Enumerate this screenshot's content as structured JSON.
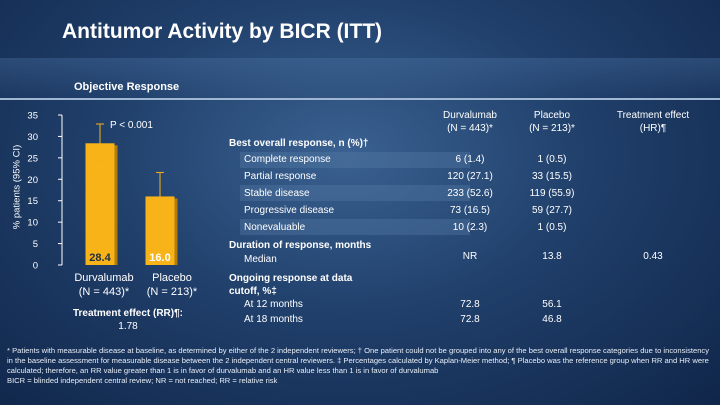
{
  "slide": {
    "title": "Antitumor Activity by BICR (ITT)",
    "section_title": "Objective Response"
  },
  "colors": {
    "bar_fill": "#f7b317",
    "bar_shadow": "#b67c08",
    "errorbar": "#f7b317",
    "background": "#1f3e69"
  },
  "chart_data": {
    "type": "bar",
    "title": "",
    "ylabel": "% patients (95% CI)",
    "ylim": [
      0,
      35
    ],
    "yticks": [
      "0",
      "5",
      "10",
      "15",
      "20",
      "25",
      "30",
      "35"
    ],
    "categories": [
      "Durvalumab\n(N = 443)*",
      "Placebo\n(N = 213)*"
    ],
    "values": [
      28.4,
      16.0
    ],
    "value_labels": [
      "28.4",
      "16.0"
    ],
    "ci_lower": [
      24.2,
      11.3
    ],
    "ci_upper": [
      32.9,
      21.6
    ],
    "annotation": "P < 0.001",
    "grid": false
  },
  "chart_labels": {
    "p_value": "P < 0.001",
    "category_1_line1": "Durvalumab",
    "category_1_line2": "(N = 443)*",
    "category_2_line1": "Placebo",
    "category_2_line2": "(N = 213)*",
    "treatment_effect_label": "Treatment effect (RR)¶:",
    "treatment_effect_value": "1.78"
  },
  "table": {
    "headers": {
      "durva_line1": "Durvalumab",
      "durva_line2": "(N = 443)*",
      "placebo_line1": "Placebo",
      "placebo_line2": "(N = 213)*",
      "effect_line1": "Treatment effect",
      "effect_line2": "(HR)¶"
    },
    "best_response_title": "Best overall response, n (%)†",
    "best_response_rows": [
      {
        "label": "Complete response",
        "durva": "6 (1.4)",
        "placebo": "1 (0.5)"
      },
      {
        "label": "Partial response",
        "durva": "120 (27.1)",
        "placebo": "33 (15.5)"
      },
      {
        "label": "Stable disease",
        "durva": "233 (52.6)",
        "placebo": "119 (55.9)"
      },
      {
        "label": "Progressive disease",
        "durva": "73 (16.5)",
        "placebo": "59 (27.7)"
      },
      {
        "label": "Nonevaluable",
        "durva": "10 (2.3)",
        "placebo": "1 (0.5)"
      }
    ],
    "duration": {
      "title": "Duration of response, months",
      "label": "Median",
      "durva": "NR",
      "placebo": "13.8",
      "effect": "0.43"
    },
    "ongoing": {
      "title_line1": "Ongoing response at data",
      "title_line2": "cutoff, %‡",
      "rows": [
        {
          "label": "At 12 months",
          "durva": "72.8",
          "placebo": "56.1"
        },
        {
          "label": "At 18 months",
          "durva": "72.8",
          "placebo": "46.8"
        }
      ]
    }
  },
  "footnotes": {
    "line1": "* Patients with measurable disease at baseline, as determined by either of the 2 independent reviewers; † One patient could not be grouped into any of the best overall response categories due to inconsistency in the baseline assessment for measurable disease between the 2 independent central reviewers. ‡ Percentages calculated by Kaplan-Meier method; ¶ Placebo was the reference group when RR and HR were calculated; therefore, an RR value greater than 1 is in favor of durvalumab and an HR value less than 1 is in favor of durvalumab",
    "line2": "BICR = blinded independent central review; NR = not reached; RR = relative risk"
  }
}
